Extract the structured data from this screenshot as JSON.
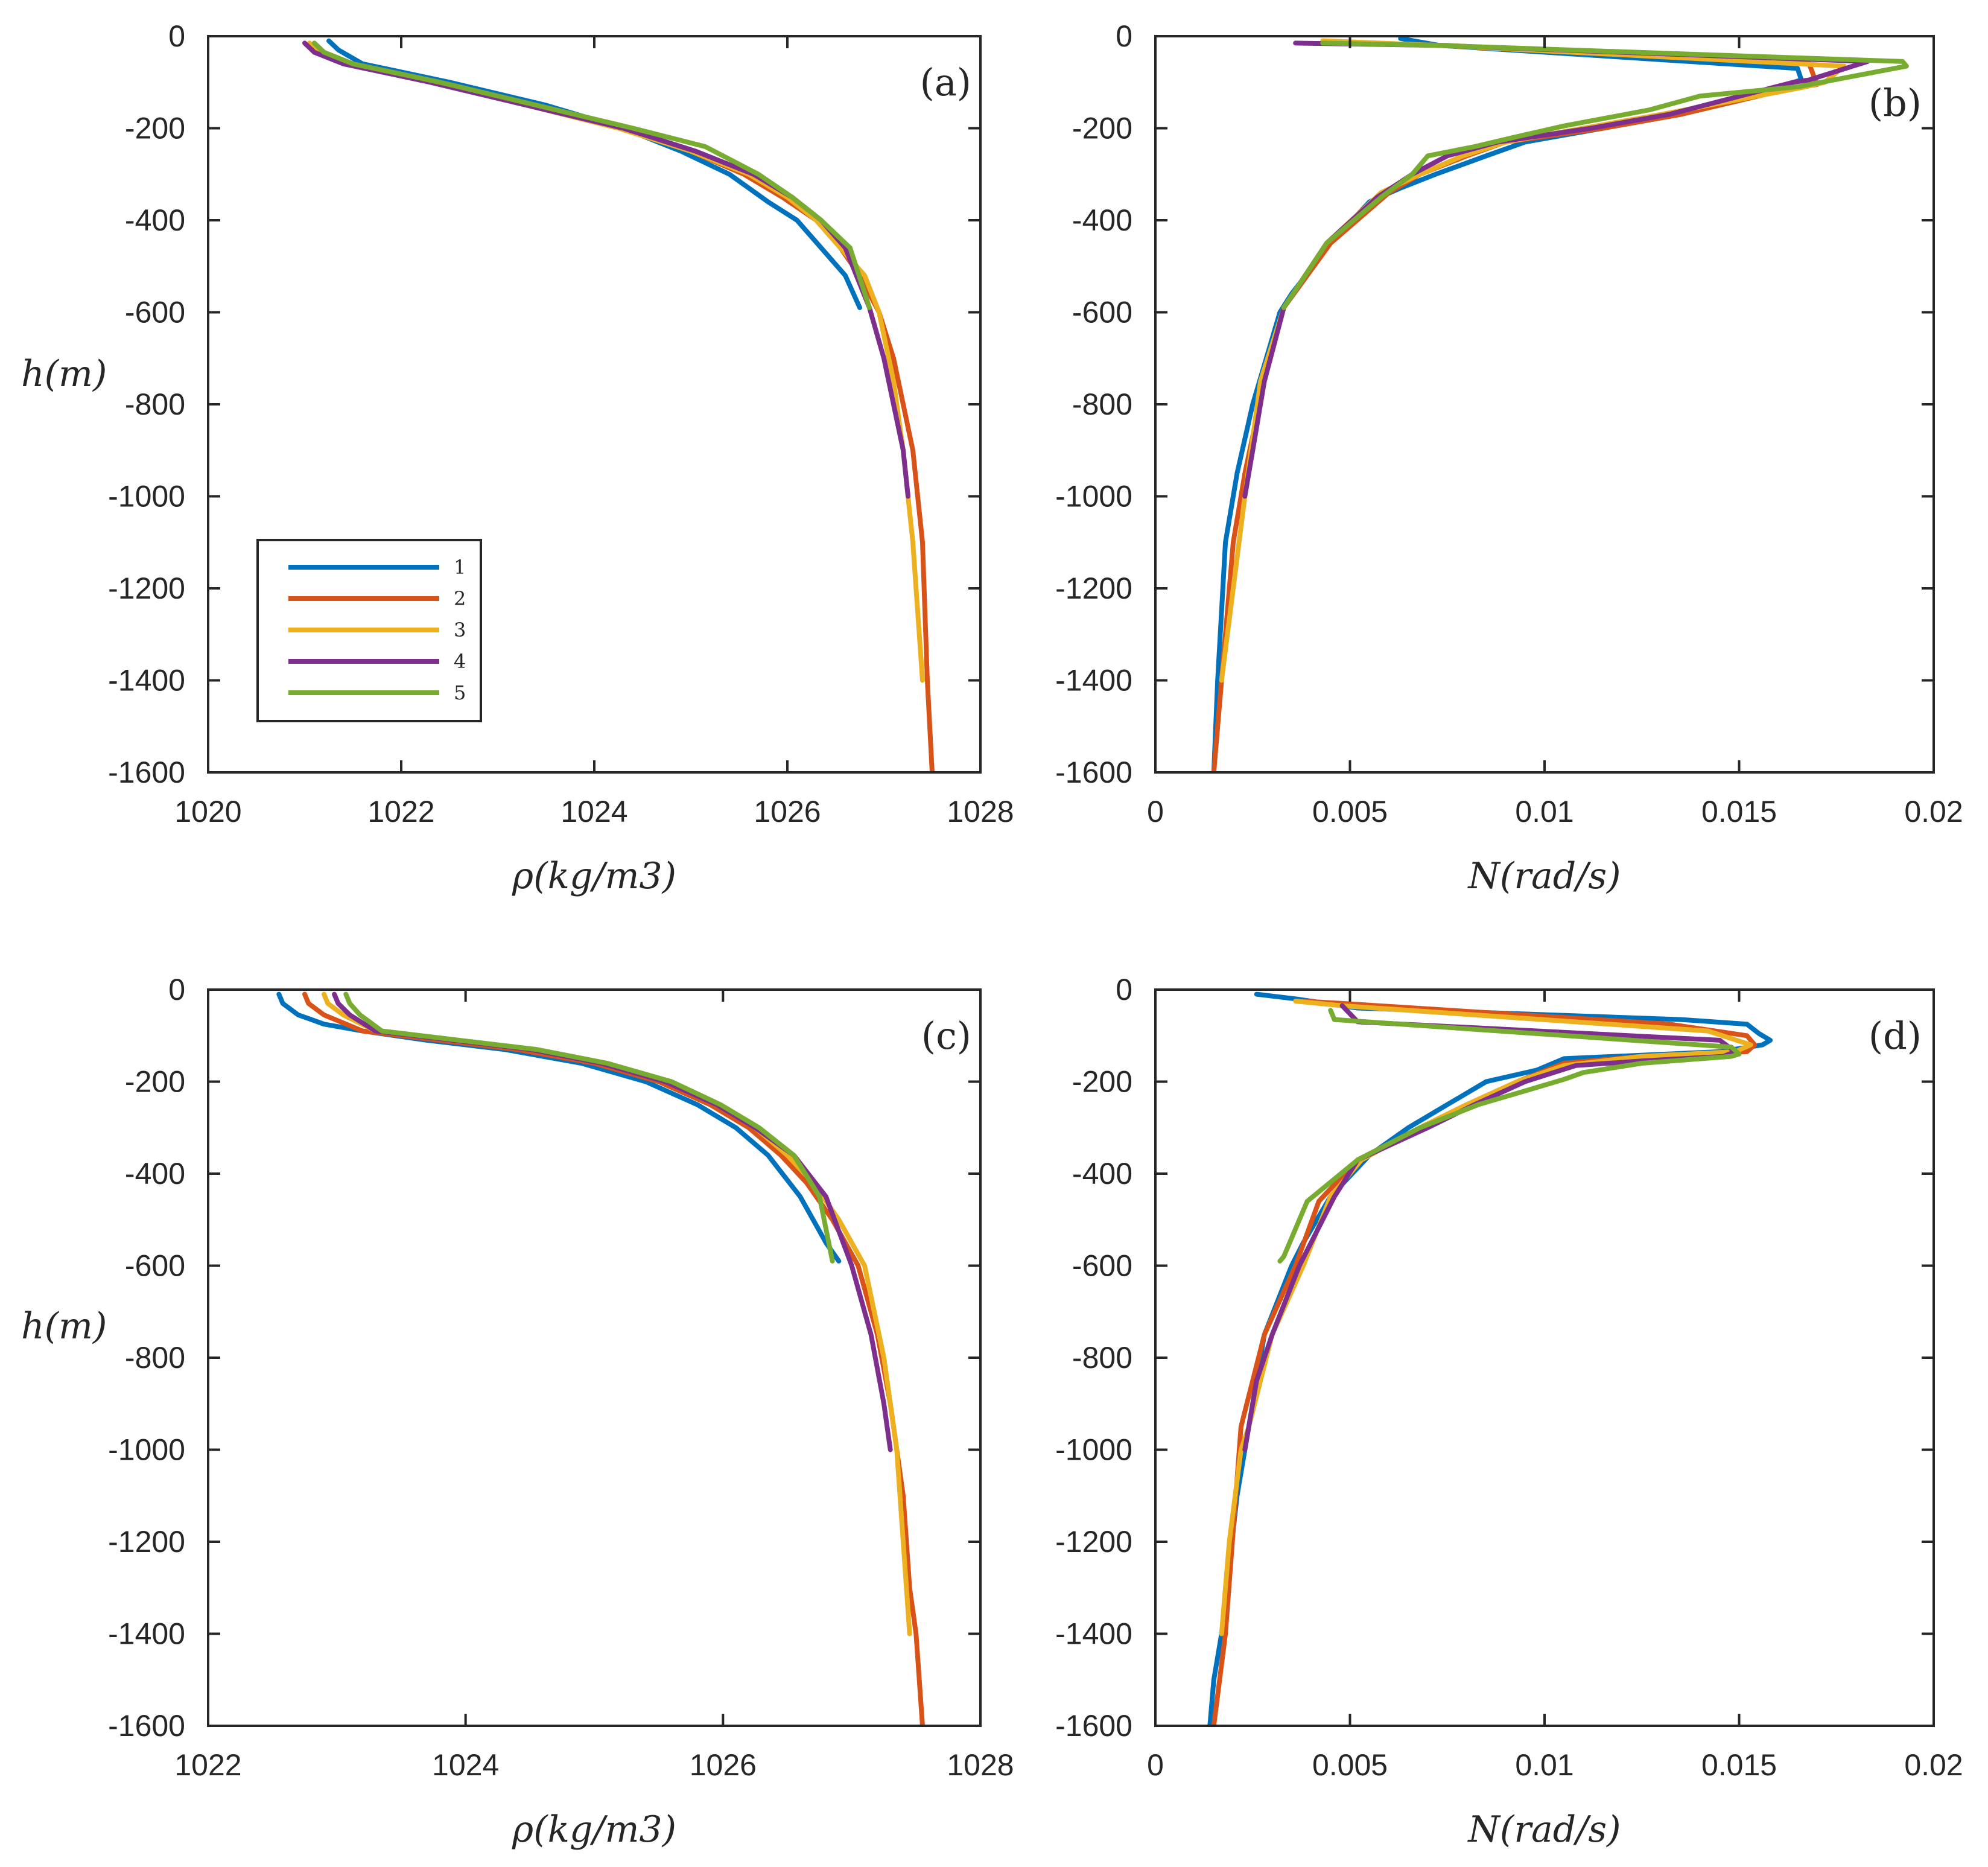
{
  "colors": {
    "axis": "#262626",
    "series": [
      "#0072BD",
      "#D95319",
      "#EDB120",
      "#7E2F8E",
      "#77AC30"
    ]
  },
  "legend": {
    "entries": [
      "1",
      "2",
      "3",
      "4",
      "5"
    ],
    "placement": "lower-left"
  },
  "chart_data": [
    {
      "type": "line",
      "panel": "(a)",
      "xlabel": "ρ(kg/m3)",
      "ylabel": "h(m)",
      "xlim": [
        1020,
        1028
      ],
      "ylim": [
        -1600,
        0
      ],
      "xticks": [
        "1020",
        "1022",
        "1024",
        "1026",
        "1028"
      ],
      "yticks": [
        "0",
        "-200",
        "-400",
        "-600",
        "-800",
        "-1000",
        "-1200",
        "-1400",
        "-1600"
      ],
      "series": [
        {
          "name": "1",
          "x": [
            1021.25,
            1021.35,
            1021.6,
            1022.5,
            1023.5,
            1024.3,
            1024.9,
            1025.4,
            1025.8,
            1026.1,
            1026.35,
            1026.6,
            1026.75
          ],
          "y": [
            -10,
            -30,
            -60,
            -100,
            -150,
            -200,
            -250,
            -300,
            -360,
            -400,
            -460,
            -520,
            -590
          ]
        },
        {
          "name": "2",
          "x": [
            1021.1,
            1021.2,
            1021.5,
            1022.4,
            1023.4,
            1024.3,
            1025.0,
            1025.55,
            1025.95,
            1026.3,
            1026.55,
            1026.75,
            1026.95,
            1027.1,
            1027.2,
            1027.3,
            1027.4,
            1027.45,
            1027.5
          ],
          "y": [
            -15,
            -35,
            -60,
            -100,
            -150,
            -200,
            -250,
            -300,
            -350,
            -400,
            -460,
            -520,
            -600,
            -700,
            -800,
            -900,
            -1100,
            -1400,
            -1600
          ]
        },
        {
          "name": "3",
          "x": [
            1021.05,
            1021.15,
            1021.45,
            1022.3,
            1023.3,
            1024.25,
            1025.0,
            1025.6,
            1026.0,
            1026.3,
            1026.55,
            1026.8,
            1026.95,
            1027.1,
            1027.2,
            1027.3,
            1027.4
          ],
          "y": [
            -15,
            -35,
            -60,
            -100,
            -150,
            -200,
            -250,
            -300,
            -350,
            -400,
            -460,
            -520,
            -600,
            -750,
            -900,
            -1100,
            -1400
          ]
        },
        {
          "name": "4",
          "x": [
            1021.0,
            1021.1,
            1021.4,
            1022.3,
            1023.3,
            1024.3,
            1025.05,
            1025.65,
            1026.05,
            1026.35,
            1026.6,
            1026.85,
            1027.0,
            1027.1,
            1027.2,
            1027.25
          ],
          "y": [
            -15,
            -35,
            -60,
            -100,
            -150,
            -200,
            -250,
            -300,
            -350,
            -400,
            -460,
            -590,
            -700,
            -800,
            -900,
            -1000
          ]
        },
        {
          "name": "5",
          "x": [
            1021.1,
            1021.2,
            1021.5,
            1022.4,
            1023.4,
            1024.4,
            1025.15,
            1025.7,
            1026.05,
            1026.35,
            1026.65,
            1026.85
          ],
          "y": [
            -15,
            -35,
            -60,
            -100,
            -150,
            -200,
            -240,
            -300,
            -350,
            -400,
            -460,
            -590
          ]
        }
      ]
    },
    {
      "type": "line",
      "panel": "(b)",
      "xlabel": "N(rad/s)",
      "ylabel": "",
      "xlim": [
        0,
        0.02
      ],
      "ylim": [
        -1600,
        0
      ],
      "xticks": [
        "0",
        "0.005",
        "0.01",
        "0.015",
        "0.02"
      ],
      "yticks": [
        "0",
        "-200",
        "-400",
        "-600",
        "-800",
        "-1000",
        "-1200",
        "-1400",
        "-1600"
      ],
      "series": [
        {
          "name": "1",
          "x": [
            0.0063,
            0.0073,
            0.0165,
            0.0166,
            0.0164,
            0.0135,
            0.0115,
            0.0095,
            0.0085,
            0.0072,
            0.0063,
            0.0055,
            0.0045,
            0.0035,
            0.0032,
            0.0025,
            0.0021,
            0.0018,
            0.0016,
            0.0015
          ],
          "y": [
            -5,
            -20,
            -70,
            -95,
            -100,
            -170,
            -200,
            -230,
            -260,
            -300,
            -330,
            -360,
            -450,
            -560,
            -600,
            -800,
            -950,
            -1100,
            -1400,
            -1600
          ]
        },
        {
          "name": "2",
          "x": [
            0.0045,
            0.0075,
            0.0168,
            0.017,
            0.0165,
            0.0135,
            0.0115,
            0.009,
            0.008,
            0.0068,
            0.006,
            0.0045,
            0.0033,
            0.0028,
            0.0023,
            0.002,
            0.0017,
            0.0015
          ],
          "y": [
            -15,
            -20,
            -60,
            -105,
            -110,
            -170,
            -200,
            -230,
            -260,
            -300,
            -340,
            -450,
            -590,
            -750,
            -950,
            -1100,
            -1400,
            -1600
          ]
        },
        {
          "name": "3",
          "x": [
            0.0043,
            0.0073,
            0.0177,
            0.0172,
            0.0167,
            0.013,
            0.011,
            0.009,
            0.0079,
            0.0068,
            0.0058,
            0.0044,
            0.0033,
            0.0027,
            0.0023,
            0.002,
            0.0017
          ],
          "y": [
            -10,
            -20,
            -65,
            -100,
            -110,
            -170,
            -200,
            -230,
            -260,
            -300,
            -340,
            -450,
            -590,
            -750,
            -1000,
            -1200,
            -1400
          ]
        },
        {
          "name": "4",
          "x": [
            0.0036,
            0.0073,
            0.0183,
            0.0168,
            0.0164,
            0.0132,
            0.0112,
            0.0088,
            0.0075,
            0.0066,
            0.0057,
            0.0044,
            0.0033,
            0.0028,
            0.0025,
            0.0023
          ],
          "y": [
            -15,
            -20,
            -55,
            -95,
            -100,
            -170,
            -200,
            -230,
            -260,
            -300,
            -350,
            -450,
            -590,
            -750,
            -900,
            -1000
          ]
        },
        {
          "name": "5",
          "x": [
            0.0043,
            0.0073,
            0.0192,
            0.0193,
            0.0165,
            0.014,
            0.0127,
            0.0105,
            0.0092,
            0.0082,
            0.007,
            0.0066,
            0.0058,
            0.0044,
            0.0033
          ],
          "y": [
            -15,
            -20,
            -55,
            -65,
            -110,
            -130,
            -160,
            -195,
            -220,
            -240,
            -260,
            -300,
            -350,
            -450,
            -590
          ]
        }
      ]
    },
    {
      "type": "line",
      "panel": "(c)",
      "xlabel": "ρ(kg/m3)",
      "ylabel": "h(m)",
      "xlim": [
        1022,
        1028
      ],
      "ylim": [
        -1600,
        0
      ],
      "xticks": [
        "1022",
        "1024",
        "1026",
        "1028"
      ],
      "yticks": [
        "0",
        "-200",
        "-400",
        "-600",
        "-800",
        "-1000",
        "-1200",
        "-1400",
        "-1600"
      ],
      "series": [
        {
          "name": "1",
          "x": [
            1022.55,
            1022.58,
            1022.7,
            1022.9,
            1023.2,
            1023.7,
            1024.3,
            1024.9,
            1025.4,
            1025.8,
            1026.1,
            1026.35,
            1026.6,
            1026.8,
            1026.9
          ],
          "y": [
            -10,
            -30,
            -55,
            -75,
            -90,
            -110,
            -130,
            -160,
            -200,
            -250,
            -300,
            -360,
            -450,
            -550,
            -590
          ]
        },
        {
          "name": "2",
          "x": [
            1022.75,
            1022.78,
            1022.9,
            1023.2,
            1023.8,
            1024.4,
            1025.0,
            1025.5,
            1025.9,
            1026.2,
            1026.45,
            1026.65,
            1026.85,
            1027.05,
            1027.2,
            1027.3,
            1027.4,
            1027.45,
            1027.5,
            1027.55
          ],
          "y": [
            -10,
            -30,
            -55,
            -90,
            -110,
            -130,
            -160,
            -200,
            -250,
            -300,
            -360,
            -420,
            -500,
            -600,
            -750,
            -900,
            -1100,
            -1300,
            -1400,
            -1600
          ]
        },
        {
          "name": "3",
          "x": [
            1022.9,
            1022.93,
            1023.05,
            1023.3,
            1023.9,
            1024.5,
            1025.05,
            1025.55,
            1025.95,
            1026.25,
            1026.5,
            1026.7,
            1026.9,
            1027.1,
            1027.25,
            1027.35,
            1027.45
          ],
          "y": [
            -10,
            -30,
            -55,
            -90,
            -110,
            -130,
            -160,
            -200,
            -250,
            -300,
            -360,
            -420,
            -500,
            -600,
            -800,
            -1000,
            -1400
          ]
        },
        {
          "name": "4",
          "x": [
            1022.98,
            1023.01,
            1023.1,
            1023.3,
            1023.9,
            1024.5,
            1025.05,
            1025.55,
            1025.95,
            1026.25,
            1026.55,
            1026.8,
            1027.0,
            1027.15,
            1027.25,
            1027.3
          ],
          "y": [
            -10,
            -30,
            -55,
            -90,
            -110,
            -130,
            -160,
            -200,
            -250,
            -300,
            -360,
            -450,
            -600,
            -750,
            -900,
            -1000
          ]
        },
        {
          "name": "5",
          "x": [
            1023.07,
            1023.1,
            1023.18,
            1023.35,
            1023.95,
            1024.55,
            1025.1,
            1025.6,
            1025.98,
            1026.28,
            1026.55,
            1026.75,
            1026.85
          ],
          "y": [
            -10,
            -30,
            -55,
            -90,
            -110,
            -130,
            -160,
            -200,
            -250,
            -300,
            -360,
            -450,
            -590
          ]
        }
      ]
    },
    {
      "type": "line",
      "panel": "(d)",
      "xlabel": "N(rad/s)",
      "ylabel": "",
      "xlim": [
        0,
        0.02
      ],
      "ylim": [
        -1600,
        0
      ],
      "xticks": [
        "0",
        "0.005",
        "0.01",
        "0.015",
        "0.02"
      ],
      "yticks": [
        "0",
        "-200",
        "-400",
        "-600",
        "-800",
        "-1000",
        "-1200",
        "-1400",
        "-1600"
      ],
      "series": [
        {
          "name": "1",
          "x": [
            0.0026,
            0.0036,
            0.0052,
            0.0135,
            0.0152,
            0.0155,
            0.0158,
            0.0156,
            0.0145,
            0.0105,
            0.0098,
            0.0085,
            0.0075,
            0.0065,
            0.0055,
            0.0045,
            0.0038,
            0.0035,
            0.0028,
            0.0024,
            0.0021,
            0.0017,
            0.0015,
            0.0014
          ],
          "y": [
            -10,
            -20,
            -40,
            -65,
            -75,
            -95,
            -110,
            -120,
            -135,
            -150,
            -175,
            -200,
            -250,
            -300,
            -360,
            -450,
            -550,
            -600,
            -750,
            -950,
            -1100,
            -1400,
            -1500,
            -1600
          ]
        },
        {
          "name": "2",
          "x": [
            0.0038,
            0.0048,
            0.0132,
            0.0152,
            0.0154,
            0.0152,
            0.0125,
            0.0105,
            0.0093,
            0.008,
            0.0068,
            0.0052,
            0.0042,
            0.0036,
            0.0028,
            0.0022,
            0.0018,
            0.0015
          ],
          "y": [
            -25,
            -30,
            -75,
            -100,
            -120,
            -135,
            -145,
            -160,
            -200,
            -250,
            -300,
            -370,
            -460,
            -600,
            -750,
            -950,
            -1400,
            -1600
          ]
        },
        {
          "name": "3",
          "x": [
            0.0036,
            0.0048,
            0.0142,
            0.0153,
            0.0149,
            0.0125,
            0.0105,
            0.0093,
            0.008,
            0.0068,
            0.0053,
            0.0045,
            0.0038,
            0.003,
            0.0024,
            0.0022,
            0.0019,
            0.0017
          ],
          "y": [
            -25,
            -35,
            -90,
            -120,
            -135,
            -145,
            -165,
            -200,
            -250,
            -300,
            -370,
            -450,
            -600,
            -750,
            -950,
            -1000,
            -1200,
            -1400
          ]
        },
        {
          "name": "4",
          "x": [
            0.0048,
            0.0052,
            0.0145,
            0.0149,
            0.0146,
            0.0125,
            0.0108,
            0.0095,
            0.0082,
            0.007,
            0.0052,
            0.0046,
            0.0037,
            0.003,
            0.0026,
            0.0024,
            0.0023
          ],
          "y": [
            -35,
            -70,
            -110,
            -135,
            -145,
            -155,
            -165,
            -200,
            -250,
            -300,
            -370,
            -450,
            -600,
            -750,
            -850,
            -950,
            -1000
          ]
        },
        {
          "name": "5",
          "x": [
            0.0045,
            0.0046,
            0.0148,
            0.015,
            0.0148,
            0.0125,
            0.011,
            0.0105,
            0.0095,
            0.0083,
            0.0068,
            0.0052,
            0.0039,
            0.0033,
            0.0032
          ],
          "y": [
            -45,
            -65,
            -125,
            -140,
            -145,
            -160,
            -180,
            -195,
            -220,
            -250,
            -300,
            -370,
            -460,
            -580,
            -590
          ]
        }
      ]
    }
  ]
}
